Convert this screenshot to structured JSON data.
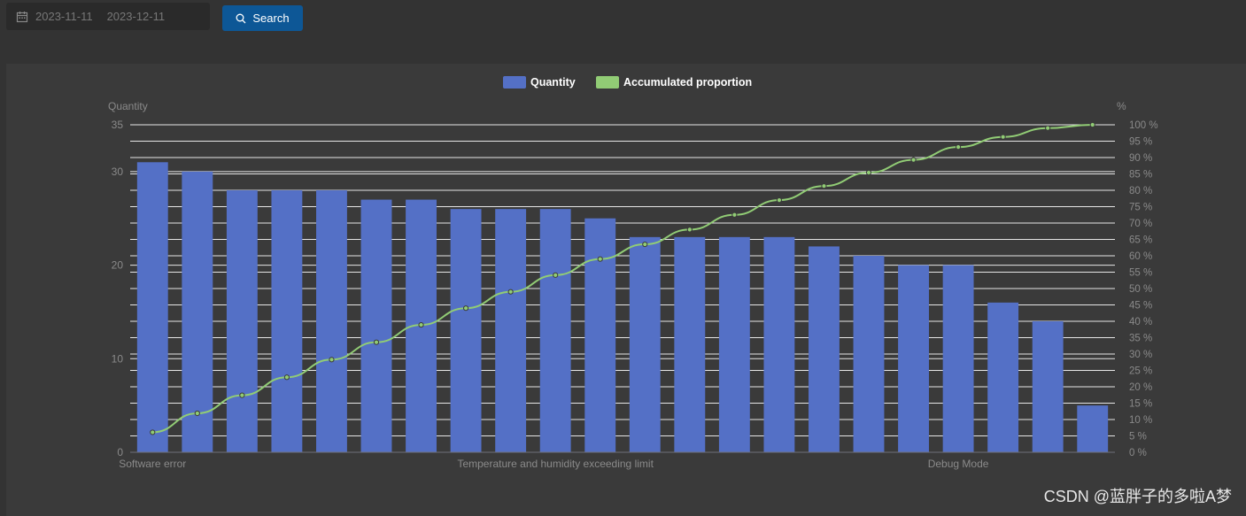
{
  "filters": {
    "start_date": "2023-11-11",
    "end_date": "2023-12-11",
    "search_label": "Search"
  },
  "watermark": "CSDN @蓝胖子的多啦A梦",
  "chart_data": {
    "type": "bar",
    "title": "",
    "legend": [
      {
        "name": "Quantity",
        "color": "#5470c6"
      },
      {
        "name": "Accumulated proportion",
        "color": "#91cc75"
      }
    ],
    "ylabel": "Quantity",
    "ylabel_right": "%",
    "ylim": [
      0,
      35
    ],
    "yticks": [
      0,
      10,
      20,
      30,
      35
    ],
    "ylim_right": [
      0,
      100
    ],
    "yticks_right": [
      "0 %",
      "5 %",
      "10 %",
      "15 %",
      "20 %",
      "25 %",
      "30 %",
      "35 %",
      "40 %",
      "45 %",
      "50 %",
      "55 %",
      "60 %",
      "65 %",
      "70 %",
      "75 %",
      "80 %",
      "85 %",
      "90 %",
      "95 %",
      "100 %"
    ],
    "x_tick_labels": [
      {
        "index": 0,
        "label": "Software error"
      },
      {
        "index": 9,
        "label": "Temperature and humidity exceeding limit"
      },
      {
        "index": 18,
        "label": "Debug Mode"
      }
    ],
    "series": [
      {
        "name": "Quantity",
        "type": "bar",
        "values": [
          31,
          30,
          28,
          28,
          28,
          27,
          27,
          26,
          26,
          26,
          25,
          23,
          23,
          23,
          23,
          22,
          21,
          20,
          20,
          16,
          14,
          5
        ]
      },
      {
        "name": "Accumulated proportion",
        "type": "line",
        "values": [
          6.1,
          11.9,
          17.4,
          22.9,
          28.3,
          33.6,
          38.9,
          44.0,
          49.0,
          54.1,
          59.0,
          63.5,
          68.0,
          72.5,
          77.0,
          81.3,
          85.4,
          89.3,
          93.2,
          96.3,
          99.0,
          100.0
        ]
      }
    ]
  }
}
